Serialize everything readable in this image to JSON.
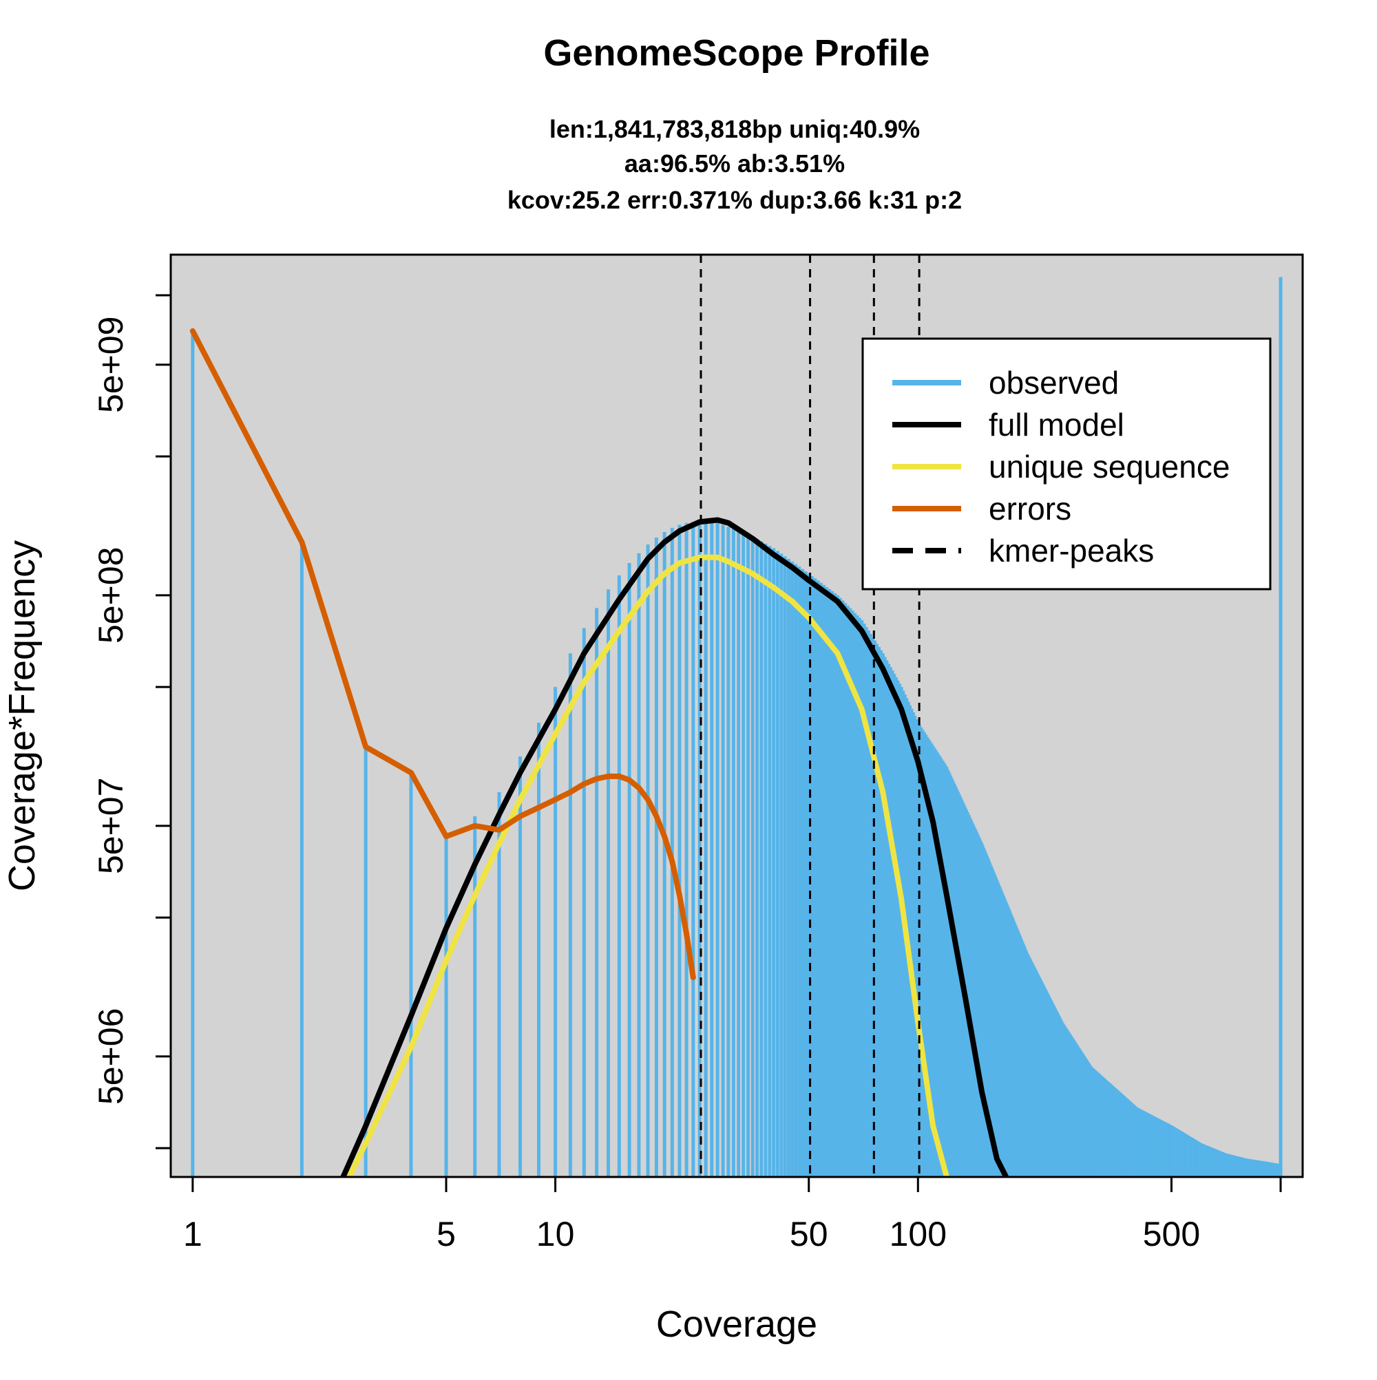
{
  "title": "GenomeScope Profile",
  "subtitle_lines": [
    "len:1,841,783,818bp uniq:40.9%",
    "aa:96.5% ab:3.51%",
    "kcov:25.2 err:0.371%  dup:3.66  k:31 p:2"
  ],
  "colors": {
    "panel_background": "#d3d3d3",
    "observed": "#56b4e9",
    "full_model": "#000000",
    "unique_sequence": "#f0e442",
    "errors": "#d55e00",
    "kmer_peaks": "#000000"
  },
  "chart_data": {
    "type": "line",
    "title": "GenomeScope Profile",
    "xlabel": "Coverage",
    "ylabel": "Coverage*Frequency",
    "x_scale": "log",
    "y_scale": "log",
    "xlim": [
      0.87,
      1150
    ],
    "ylim": [
      1500000,
      15000000000
    ],
    "x_ticks": [
      1,
      5,
      10,
      50,
      100,
      500,
      1000
    ],
    "x_tick_labels": [
      "1",
      "5",
      "10",
      "50",
      "100",
      "500",
      ""
    ],
    "y_ticks": [
      2000000,
      5000000,
      20000000,
      50000000,
      200000000,
      500000000,
      2000000000,
      5000000000,
      10000000000
    ],
    "y_tick_labels": [
      "",
      "5e+06",
      "",
      "5e+07",
      "",
      "5e+08",
      "",
      "5e+09",
      ""
    ],
    "grid": false,
    "legend_position": "top-right",
    "legend": [
      {
        "label": "observed",
        "style": "solid",
        "color": "#56b4e9"
      },
      {
        "label": "full model",
        "style": "solid",
        "color": "#000000"
      },
      {
        "label": "unique sequence",
        "style": "solid",
        "color": "#f0e442"
      },
      {
        "label": "errors",
        "style": "solid",
        "color": "#d55e00"
      },
      {
        "label": "kmer-peaks",
        "style": "dashed",
        "color": "#000000"
      }
    ],
    "kmer_peaks": [
      25.2,
      50.4,
      75.6,
      100.8
    ],
    "observed_histogram": {
      "x": [
        1,
        2,
        3,
        4,
        5,
        6,
        7,
        8,
        9,
        10,
        11,
        12,
        13,
        14,
        15,
        16,
        17,
        18,
        19,
        20,
        21,
        22,
        23,
        24,
        25,
        26,
        27,
        28,
        29,
        30,
        31,
        32,
        33,
        35,
        40,
        45,
        50,
        60,
        70,
        80,
        90,
        100,
        120,
        150,
        200,
        250,
        300,
        400,
        500,
        600,
        700,
        800,
        900,
        1000
      ],
      "y": [
        7000000000,
        850000000,
        110000000,
        85000000,
        45000000,
        55000000,
        70000000,
        100000000,
        140000000,
        200000000,
        280000000,
        360000000,
        440000000,
        530000000,
        610000000,
        690000000,
        760000000,
        830000000,
        890000000,
        940000000,
        980000000,
        1010000000,
        1030000000,
        1040000000,
        1050000000,
        1050000000,
        1040000000,
        1030000000,
        1010000000,
        990000000,
        970000000,
        950000000,
        930000000,
        900000000,
        800000000,
        700000000,
        620000000,
        500000000,
        390000000,
        280000000,
        200000000,
        140000000,
        90000000,
        42000000,
        14000000,
        7000000,
        4500000,
        3000000,
        2500000,
        2100000,
        1900000,
        1800000,
        1750000,
        1700000
      ]
    },
    "observed_final_bin": {
      "x": 1000,
      "y": 12000000000
    },
    "series": [
      {
        "name": "full model",
        "x": [
          2.6,
          3,
          4,
          5,
          6,
          7,
          8,
          10,
          12,
          15,
          18,
          20,
          22,
          25,
          28,
          30,
          35,
          40,
          45,
          50,
          60,
          70,
          80,
          90,
          100,
          110,
          120,
          135,
          150,
          165,
          175
        ],
        "y": [
          1500000,
          2500000,
          7500000,
          18000000,
          34000000,
          56000000,
          85000000,
          160000000,
          280000000,
          480000000,
          720000000,
          850000000,
          950000000,
          1040000000,
          1060000000,
          1030000000,
          880000000,
          750000000,
          660000000,
          580000000,
          470000000,
          350000000,
          240000000,
          160000000,
          95000000,
          52000000,
          25000000,
          9000000,
          3500000,
          1800000,
          1500000
        ]
      },
      {
        "name": "unique sequence",
        "x": [
          2.7,
          3,
          4,
          5,
          6,
          7,
          8,
          10,
          12,
          15,
          18,
          20,
          22,
          25,
          28,
          30,
          35,
          40,
          45,
          50,
          60,
          70,
          80,
          90,
          100,
          110,
          120
        ],
        "y": [
          1500000,
          2100000,
          5500000,
          13000000,
          25000000,
          42000000,
          65000000,
          125000000,
          210000000,
          350000000,
          520000000,
          620000000,
          690000000,
          730000000,
          730000000,
          700000000,
          620000000,
          540000000,
          470000000,
          400000000,
          280000000,
          160000000,
          70000000,
          24000000,
          7000000,
          2500000,
          1500000
        ]
      },
      {
        "name": "errors",
        "x": [
          1,
          2,
          3,
          4,
          5,
          6,
          7,
          8,
          9,
          10,
          11,
          12,
          13,
          14,
          15,
          16,
          17,
          18,
          19,
          20,
          21,
          22,
          23,
          24
        ],
        "y": [
          7000000000,
          850000000,
          110000000,
          85000000,
          45000000,
          50000000,
          48000000,
          55000000,
          60000000,
          65000000,
          70000000,
          76000000,
          80000000,
          82000000,
          82000000,
          79000000,
          73000000,
          65000000,
          55000000,
          45000000,
          35000000,
          25000000,
          17000000,
          11000000
        ]
      }
    ]
  }
}
